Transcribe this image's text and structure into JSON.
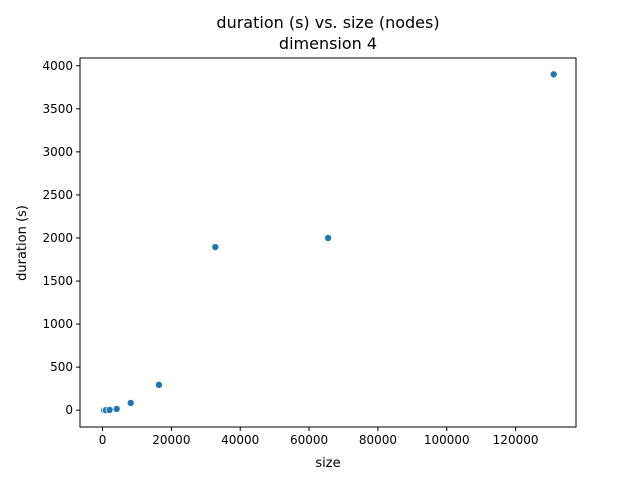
{
  "chart_data": {
    "type": "scatter",
    "title": "duration (s) vs. size (nodes)",
    "subtitle": "dimension 4",
    "xlabel": "size",
    "ylabel": "duration (s)",
    "xlim": [
      -6550,
      137550
    ],
    "ylim": [
      -195,
      4090
    ],
    "xticks": [
      0,
      20000,
      40000,
      60000,
      80000,
      100000,
      120000
    ],
    "yticks": [
      0,
      500,
      1000,
      1500,
      2000,
      2500,
      3000,
      3500,
      4000
    ],
    "grid": false,
    "marker_color": "#1f77b4",
    "x": [
      16,
      32,
      64,
      128,
      256,
      512,
      1024,
      2048,
      4096,
      8192,
      16384,
      32768,
      65536,
      131072
    ],
    "y": [
      0,
      0,
      0,
      0,
      0,
      0,
      1,
      3,
      15,
      85,
      295,
      1895,
      2000,
      3900
    ]
  }
}
